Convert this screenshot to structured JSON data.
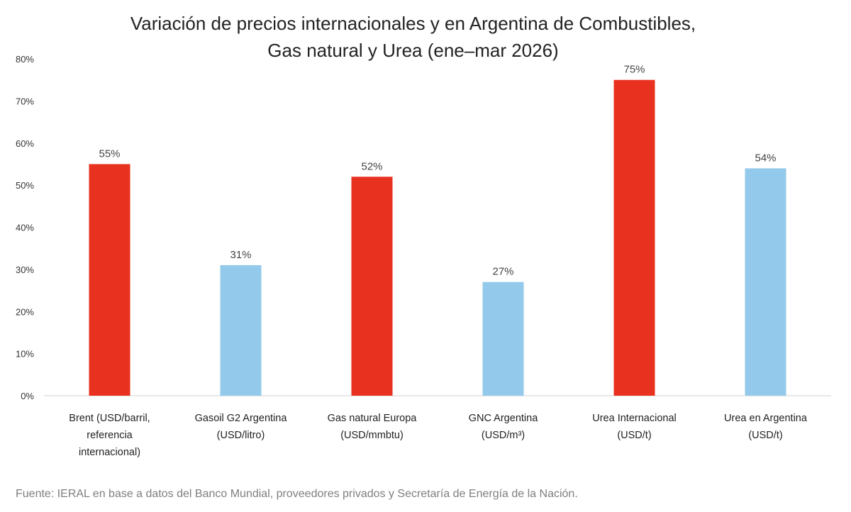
{
  "chart_data": {
    "type": "bar",
    "title_lines": [
      "Variación de precios internacionales y en Argentina de Combustibles,",
      "Gas natural y Urea (ene–mar 2026)"
    ],
    "categories": [
      [
        "Brent (USD/barril,",
        "referencia",
        "internacional)"
      ],
      [
        "Gasoil G2 Argentina",
        "(USD/litro)"
      ],
      [
        "Gas natural Europa",
        "(USD/mmbtu)"
      ],
      [
        "GNC Argentina",
        "(USD/m³)"
      ],
      [
        "Urea Internacional",
        "(USD/t)"
      ],
      [
        "Urea en Argentina",
        "(USD/t)"
      ]
    ],
    "values": [
      55,
      31,
      52,
      27,
      75,
      54
    ],
    "data_labels": [
      "55%",
      "31%",
      "52%",
      "27%",
      "75%",
      "54%"
    ],
    "bar_colors": [
      "#e8311f",
      "#93c9ea",
      "#e8311f",
      "#93c9ea",
      "#e8311f",
      "#93c9ea"
    ],
    "ylim": [
      0,
      80
    ],
    "yticks": [
      0,
      10,
      20,
      30,
      40,
      50,
      60,
      70,
      80
    ],
    "ytick_labels": [
      "0%",
      "10%",
      "20%",
      "30%",
      "40%",
      "50%",
      "60%",
      "70%",
      "80%"
    ],
    "grid": false,
    "xlabel": "",
    "ylabel": ""
  },
  "source": "Fuente: IERAL en base a datos del Banco Mundial, proveedores privados y Secretaría de Energía de la Nación."
}
